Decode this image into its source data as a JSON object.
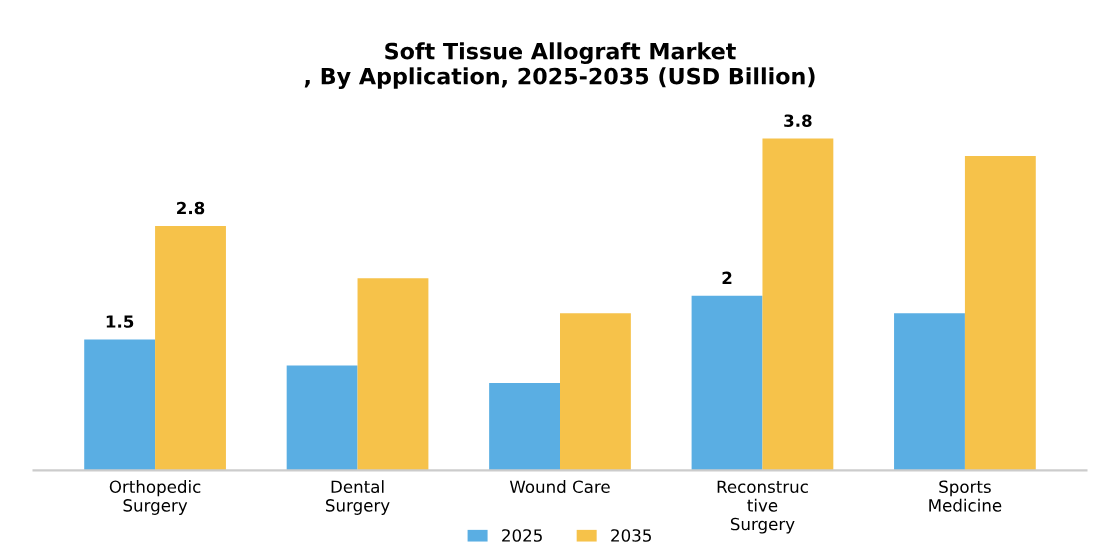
{
  "chart_data": {
    "type": "bar",
    "title": "Soft Tissue Allograft Market\n, By Application, 2025-2035 (USD Billion)",
    "categories": [
      "Orthopedic\nSurgery",
      "Dental\nSurgery",
      "Wound Care",
      "Reconstruc\ntive\nSurgery",
      "Sports\nMedicine"
    ],
    "series": [
      {
        "name": "2025",
        "color": "#5aaee3",
        "values": [
          1.5,
          1.2,
          1.0,
          2.0,
          1.8
        ],
        "value_labels": [
          "1.5",
          null,
          null,
          "2",
          null
        ]
      },
      {
        "name": "2035",
        "color": "#f6c24a",
        "values": [
          2.8,
          2.2,
          1.8,
          3.8,
          3.6
        ],
        "value_labels": [
          "2.8",
          null,
          null,
          "3.8",
          null
        ]
      }
    ],
    "legend": "bottom",
    "grid": false,
    "tick_labels": "x"
  }
}
